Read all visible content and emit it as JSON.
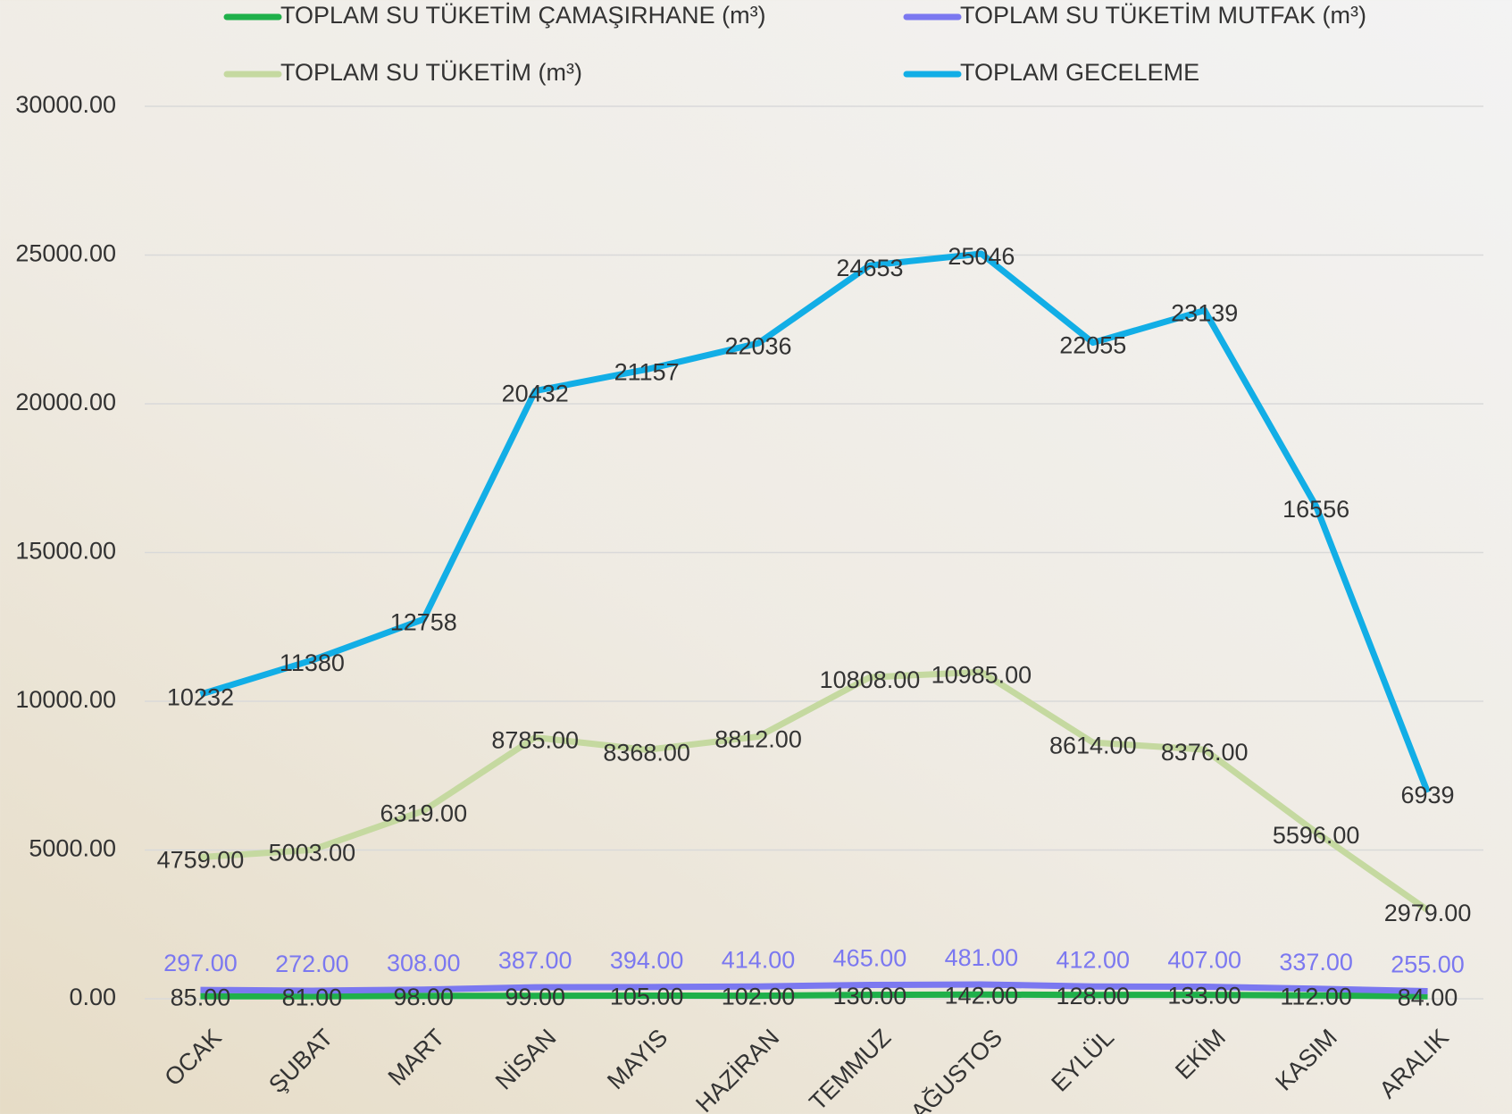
{
  "chart_data": {
    "type": "line",
    "categories": [
      "OCAK",
      "ŞUBAT",
      "MART",
      "NİSAN",
      "MAYIS",
      "HAZİRAN",
      "TEMMUZ",
      "AĞUSTOS",
      "EYLÜL",
      "EKİM",
      "KASIM",
      "ARALIK"
    ],
    "series": [
      {
        "name": "TOPLAM SU TÜKETİM ÇAMAŞIRHANE (m³)",
        "color": "#1fb04a",
        "values": [
          85,
          81,
          98,
          99,
          105,
          102,
          130,
          142,
          128,
          133,
          112,
          84
        ],
        "value_labels": [
          "85.00",
          "81.00",
          "98.00",
          "99.00",
          "105.00",
          "102.00",
          "130.00",
          "142.00",
          "128.00",
          "133.00",
          "112.00",
          "84.00"
        ]
      },
      {
        "name": "TOPLAM SU TÜKETİM MUTFAK (m³)",
        "color": "#7b78f0",
        "values": [
          297,
          272,
          308,
          387,
          394,
          414,
          465,
          481,
          412,
          407,
          337,
          255
        ],
        "value_labels": [
          "297.00",
          "272.00",
          "308.00",
          "387.00",
          "394.00",
          "414.00",
          "465.00",
          "481.00",
          "412.00",
          "407.00",
          "337.00",
          "255.00"
        ]
      },
      {
        "name": "TOPLAM SU TÜKETİM (m³)",
        "color": "#c5d9a0",
        "values": [
          4759,
          5003,
          6319,
          8785,
          8368,
          8812,
          10808,
          10985,
          8614,
          8376,
          5596,
          2979
        ],
        "value_labels": [
          "4759.00",
          "5003.00",
          "6319.00",
          "8785.00",
          "8368.00",
          "8812.00",
          "10808.00",
          "10985.00",
          "8614.00",
          "8376.00",
          "5596.00",
          "2979.00"
        ]
      },
      {
        "name": "TOPLAM GECELEME",
        "color": "#12aee6",
        "values": [
          10232,
          11380,
          12758,
          20432,
          21157,
          22036,
          24653,
          25046,
          22055,
          23139,
          16556,
          6939
        ]
      }
    ],
    "ylim": [
      0,
      30000
    ],
    "yticks": [
      {
        "value": 0,
        "label": "0.00"
      },
      {
        "value": 5000,
        "label": "5000.00"
      },
      {
        "value": 10000,
        "label": "10000.00"
      },
      {
        "value": 15000,
        "label": "15000.00"
      },
      {
        "value": 20000,
        "label": "20000.00"
      },
      {
        "value": 25000,
        "label": "25000.00"
      },
      {
        "value": 30000,
        "label": "30000.00"
      }
    ],
    "grid": true,
    "legend": "top"
  }
}
